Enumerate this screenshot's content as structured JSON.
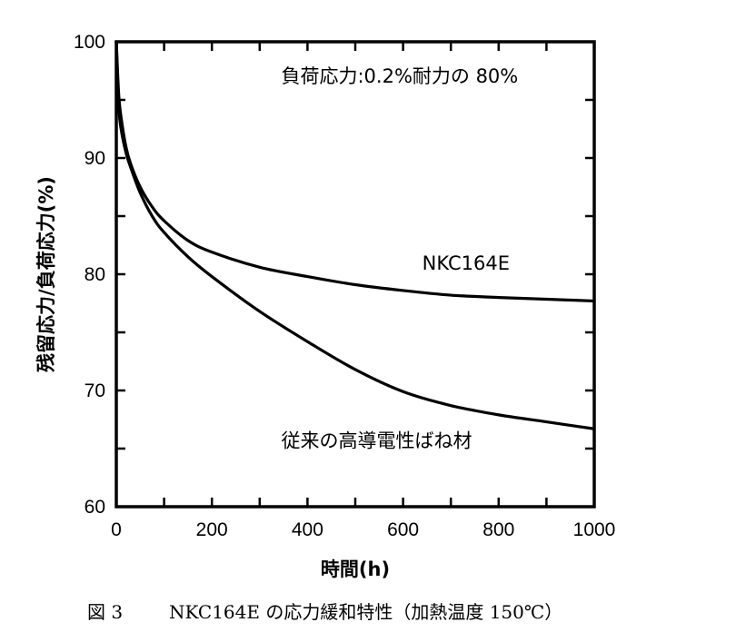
{
  "chart_data": {
    "type": "line",
    "title": "",
    "xlabel": "時間(h)",
    "ylabel": "残留応力/負荷応力(%)",
    "xlim": [
      0,
      1000
    ],
    "ylim": [
      60,
      100
    ],
    "x_ticks": [
      "0",
      "200",
      "400",
      "600",
      "800",
      "1000"
    ],
    "y_ticks": [
      "60",
      "70",
      "80",
      "90",
      "100"
    ],
    "grid": false,
    "legend": "none",
    "annotations": [
      {
        "text": "負荷応力:0.2%耐力の 80%",
        "x": 345,
        "y": 96.5
      }
    ],
    "series": [
      {
        "name": "NKC164E",
        "label_at": {
          "x": 640,
          "y": 80.4
        },
        "x": [
          0,
          5,
          10,
          20,
          30,
          50,
          75,
          100,
          150,
          200,
          300,
          400,
          500,
          600,
          700,
          800,
          900,
          1000
        ],
        "y": [
          100,
          95.5,
          93.5,
          91.0,
          89.5,
          87.5,
          85.8,
          84.6,
          82.9,
          81.9,
          80.6,
          79.8,
          79.1,
          78.6,
          78.2,
          78.0,
          77.85,
          77.7
        ]
      },
      {
        "name": "従来の高導電性ばね材",
        "label_at": {
          "x": 345,
          "y": 65.1
        },
        "x": [
          0,
          5,
          10,
          20,
          30,
          50,
          75,
          100,
          150,
          200,
          300,
          400,
          500,
          600,
          700,
          800,
          900,
          1000
        ],
        "y": [
          100,
          94.5,
          92.5,
          90.5,
          89.2,
          87.0,
          85.0,
          83.6,
          81.5,
          79.8,
          76.8,
          74.2,
          71.8,
          69.9,
          68.7,
          67.9,
          67.3,
          66.7
        ]
      }
    ]
  },
  "caption": {
    "figure_number": "図 3",
    "text": "NKC164E の応力緩和特性（加熱温度 150℃）"
  }
}
